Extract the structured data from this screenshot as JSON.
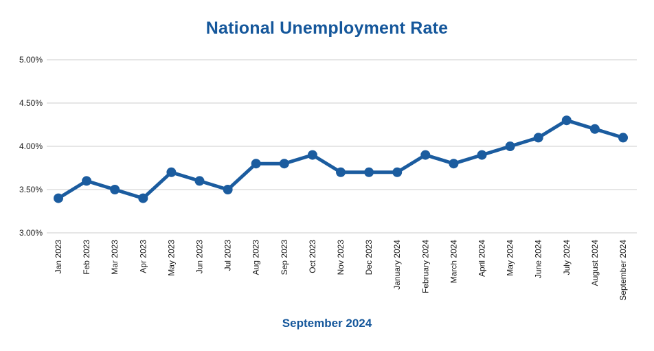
{
  "chart_data": {
    "type": "line",
    "title": "National Unemployment Rate",
    "caption": "September 2024",
    "categories": [
      "Jan 2023",
      "Feb 2023",
      "Mar 2023",
      "Apr 2023",
      "May 2023",
      "Jun 2023",
      "Jul 2023",
      "Aug 2023",
      "Sep 2023",
      "Oct 2023",
      "Nov 2023",
      "Dec 2023",
      "January 2024",
      "February 2024",
      "March 2024",
      "April 2024",
      "May 2024",
      "June 2024",
      "July 2024",
      "August 2024",
      "September 2024"
    ],
    "values": [
      3.4,
      3.6,
      3.5,
      3.4,
      3.7,
      3.6,
      3.5,
      3.8,
      3.8,
      3.9,
      3.7,
      3.7,
      3.7,
      3.9,
      3.8,
      3.9,
      4.0,
      4.1,
      4.3,
      4.2,
      4.1
    ],
    "ylim": [
      3.0,
      5.0
    ],
    "ytick_step": 0.5,
    "ytick_labels": [
      "3.00%",
      "3.50%",
      "4.00%",
      "4.50%",
      "5.00%"
    ],
    "xlabel": "",
    "ylabel": "",
    "grid": true,
    "legend": "none",
    "line_color": "#1b5c9f",
    "title_color": "#15579b",
    "grid_color": "#cccccc",
    "label_color": "#1a1a1a"
  }
}
